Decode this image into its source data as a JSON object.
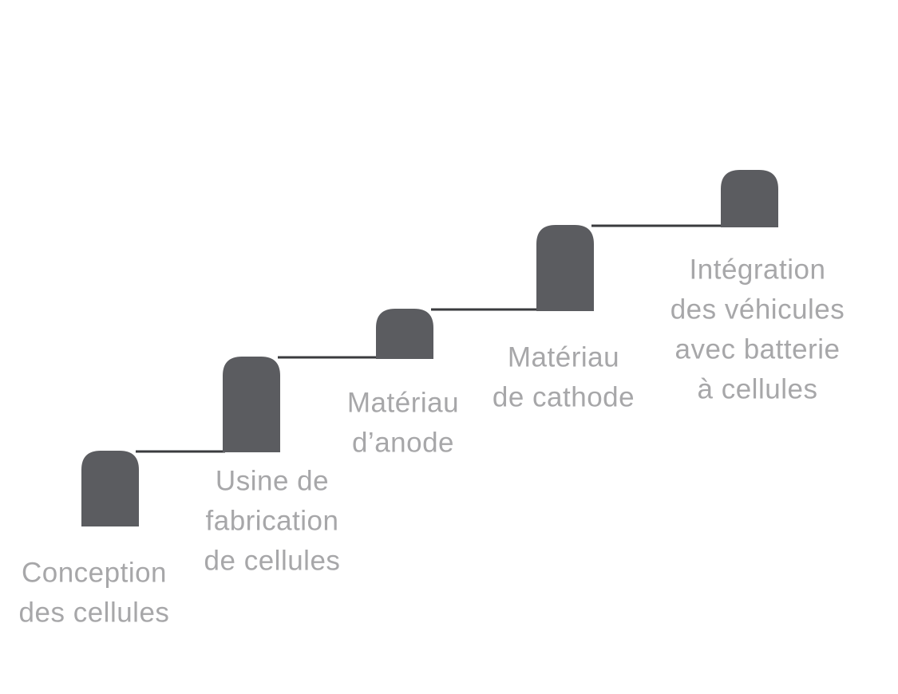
{
  "steps": [
    {
      "label": [
        "Conception",
        "des cellules"
      ]
    },
    {
      "label": [
        "Usine de",
        "fabrication",
        "de cellules"
      ]
    },
    {
      "label": [
        "Matériau",
        "d’anode"
      ]
    },
    {
      "label": [
        "Matériau",
        "de cathode"
      ]
    },
    {
      "label": [
        "Intégration",
        "des véhicules",
        "avec batterie",
        "à cellules"
      ]
    }
  ]
}
